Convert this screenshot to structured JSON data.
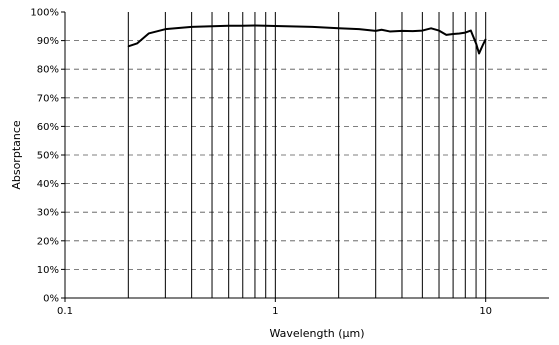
{
  "chart_data": {
    "type": "line",
    "title": "",
    "xlabel": "Wavelength (µm)",
    "ylabel": "Absorptance",
    "xscale": "log",
    "xlim": [
      0.1,
      20
    ],
    "ylim": [
      0,
      100
    ],
    "x_tick_labels": [
      {
        "value": 0.1,
        "label": "0.1"
      },
      {
        "value": 1,
        "label": "1"
      },
      {
        "value": 10,
        "label": "10"
      }
    ],
    "y_tick_labels": [
      {
        "value": 0,
        "label": "0%"
      },
      {
        "value": 10,
        "label": "10%"
      },
      {
        "value": 20,
        "label": "20%"
      },
      {
        "value": 30,
        "label": "30%"
      },
      {
        "value": 40,
        "label": "40%"
      },
      {
        "value": 50,
        "label": "50%"
      },
      {
        "value": 60,
        "label": "60%"
      },
      {
        "value": 70,
        "label": "70%"
      },
      {
        "value": 80,
        "label": "80%"
      },
      {
        "value": 90,
        "label": "90%"
      },
      {
        "value": 100,
        "label": "100%"
      }
    ],
    "x_gridlines": [
      0.2,
      0.3,
      0.4,
      0.5,
      0.6,
      0.7,
      0.8,
      0.9,
      1,
      2,
      3,
      4,
      5,
      6,
      7,
      8,
      9,
      10
    ],
    "y_gridlines": [
      10,
      20,
      30,
      40,
      50,
      60,
      70,
      80,
      90
    ],
    "x_grid_style": "solid",
    "y_grid_style": "dashed",
    "legend": "none",
    "series": [
      {
        "color": "#000000",
        "points": [
          {
            "x": 0.2,
            "y": 88
          },
          {
            "x": 0.22,
            "y": 89
          },
          {
            "x": 0.25,
            "y": 92.5
          },
          {
            "x": 0.3,
            "y": 94
          },
          {
            "x": 0.4,
            "y": 94.8
          },
          {
            "x": 0.5,
            "y": 95
          },
          {
            "x": 0.6,
            "y": 95.2
          },
          {
            "x": 0.7,
            "y": 95.2
          },
          {
            "x": 0.8,
            "y": 95.3
          },
          {
            "x": 0.9,
            "y": 95.2
          },
          {
            "x": 1,
            "y": 95.1
          },
          {
            "x": 1.5,
            "y": 94.8
          },
          {
            "x": 2,
            "y": 94.3
          },
          {
            "x": 2.5,
            "y": 94
          },
          {
            "x": 3,
            "y": 93.4
          },
          {
            "x": 3.2,
            "y": 93.8
          },
          {
            "x": 3.5,
            "y": 93.2
          },
          {
            "x": 4,
            "y": 93.4
          },
          {
            "x": 4.5,
            "y": 93.3
          },
          {
            "x": 5,
            "y": 93.5
          },
          {
            "x": 5.5,
            "y": 94.3
          },
          {
            "x": 6,
            "y": 93.5
          },
          {
            "x": 6.5,
            "y": 92
          },
          {
            "x": 7,
            "y": 92.3
          },
          {
            "x": 7.5,
            "y": 92.5
          },
          {
            "x": 8,
            "y": 92.8
          },
          {
            "x": 8.5,
            "y": 93.5
          },
          {
            "x": 9,
            "y": 89
          },
          {
            "x": 9.3,
            "y": 85.5
          },
          {
            "x": 9.7,
            "y": 88.5
          },
          {
            "x": 10,
            "y": 90.5
          }
        ]
      }
    ]
  }
}
